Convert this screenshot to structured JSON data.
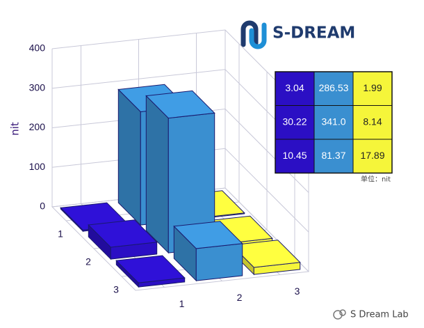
{
  "chart_data": {
    "type": "bar3d",
    "ylabel": "nit",
    "categories": [
      "1",
      "2",
      "3"
    ],
    "depth_categories": [
      "1",
      "2",
      "3"
    ],
    "series": [
      {
        "color": "#2b0fc4",
        "values": [
          3.04,
          30.22,
          10.45
        ],
        "value_labels": [
          "3.04",
          "30.22",
          "10.45"
        ]
      },
      {
        "color": "#3a8fd0",
        "values": [
          286.53,
          341.0,
          81.37
        ],
        "value_labels": [
          "286.53",
          "341.0",
          "81.37"
        ]
      },
      {
        "color": "#f5f53a",
        "values": [
          1.99,
          8.14,
          17.89
        ],
        "value_labels": [
          "1.99",
          "8.14",
          "17.89"
        ]
      }
    ],
    "ylim": [
      0,
      400
    ],
    "yticks": [
      0,
      100,
      200,
      300,
      400
    ],
    "grid": true,
    "table_note": "单位：nit"
  },
  "logo": {
    "text": "S-DREAM"
  },
  "watermark": {
    "text": "S Dream Lab"
  }
}
